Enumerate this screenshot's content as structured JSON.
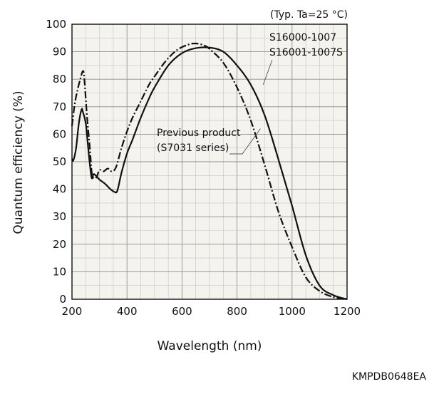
{
  "chart_data": {
    "type": "line",
    "title": "",
    "condition_note": "(Typ. Ta=25 °C)",
    "xlabel": "Wavelength (nm)",
    "ylabel": "Quantum efficiency (%)",
    "xlim": [
      200,
      1200
    ],
    "ylim": [
      0,
      100
    ],
    "x_ticks": [
      200,
      400,
      600,
      800,
      1000,
      1200
    ],
    "y_ticks": [
      0,
      10,
      20,
      30,
      40,
      50,
      60,
      70,
      80,
      90,
      100
    ],
    "grid": true,
    "series": [
      {
        "name": "S16000-1007 / S16001-1007S",
        "line_style": "dash-dot",
        "color": "#111111",
        "points": [
          [
            200,
            63
          ],
          [
            210,
            71
          ],
          [
            220,
            76
          ],
          [
            230,
            80
          ],
          [
            240,
            83
          ],
          [
            245,
            80
          ],
          [
            255,
            66
          ],
          [
            265,
            55
          ],
          [
            272,
            46
          ],
          [
            280,
            44
          ],
          [
            290,
            44.5
          ],
          [
            300,
            47
          ],
          [
            315,
            46.5
          ],
          [
            330,
            47.5
          ],
          [
            345,
            46.5
          ],
          [
            360,
            48
          ],
          [
            380,
            55
          ],
          [
            400,
            61
          ],
          [
            420,
            66
          ],
          [
            450,
            72
          ],
          [
            480,
            78
          ],
          [
            500,
            81
          ],
          [
            540,
            86.5
          ],
          [
            580,
            90.5
          ],
          [
            620,
            92.5
          ],
          [
            650,
            93
          ],
          [
            680,
            92.3
          ],
          [
            700,
            91
          ],
          [
            750,
            86
          ],
          [
            800,
            77
          ],
          [
            850,
            65
          ],
          [
            900,
            49
          ],
          [
            950,
            32
          ],
          [
            1000,
            19
          ],
          [
            1050,
            8
          ],
          [
            1100,
            3
          ],
          [
            1150,
            0.8
          ],
          [
            1200,
            0
          ]
        ]
      },
      {
        "name": "Previous product (S7031 series)",
        "line_style": "solid",
        "color": "#111111",
        "points": [
          [
            200,
            51
          ],
          [
            205,
            50.5
          ],
          [
            215,
            55
          ],
          [
            225,
            64
          ],
          [
            235,
            69
          ],
          [
            240,
            68
          ],
          [
            250,
            64
          ],
          [
            258,
            56
          ],
          [
            265,
            49
          ],
          [
            272,
            44
          ],
          [
            280,
            45.5
          ],
          [
            300,
            43.5
          ],
          [
            320,
            42
          ],
          [
            340,
            40
          ],
          [
            355,
            39
          ],
          [
            365,
            39.5
          ],
          [
            380,
            46
          ],
          [
            400,
            53
          ],
          [
            420,
            58
          ],
          [
            450,
            66
          ],
          [
            480,
            73
          ],
          [
            500,
            77
          ],
          [
            550,
            85
          ],
          [
            600,
            89.5
          ],
          [
            650,
            91.3
          ],
          [
            700,
            91.5
          ],
          [
            750,
            90
          ],
          [
            800,
            85
          ],
          [
            850,
            78
          ],
          [
            900,
            67
          ],
          [
            950,
            51
          ],
          [
            1000,
            34
          ],
          [
            1050,
            16
          ],
          [
            1100,
            5
          ],
          [
            1150,
            1.5
          ],
          [
            1200,
            0
          ]
        ]
      }
    ],
    "annotations": [
      {
        "lines": [
          "S16000-1007",
          "S16001-1007S"
        ],
        "target": [
          895,
          78
        ]
      },
      {
        "lines": [
          "Previous product",
          "(S7031 series)"
        ],
        "target": [
          885,
          62
        ]
      }
    ],
    "document_code": "KMPDB0648EA"
  }
}
